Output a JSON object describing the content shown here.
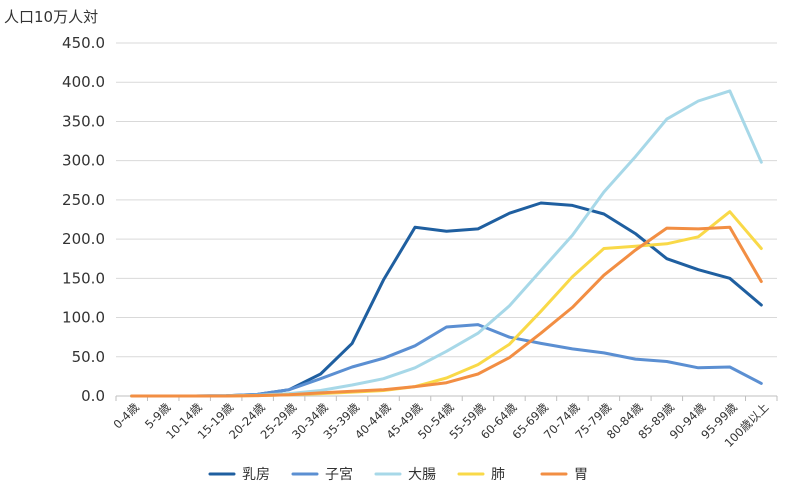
{
  "chart_data": {
    "type": "line",
    "title": "",
    "ylabel": "人口10万人対",
    "xlabel": "",
    "ylim": [
      0,
      450
    ],
    "yticks": [
      "0.0",
      "50.0",
      "100.0",
      "150.0",
      "200.0",
      "250.0",
      "300.0",
      "350.0",
      "400.0",
      "450.0"
    ],
    "grid": "horizontal",
    "legend": "bottom",
    "categories": [
      "0-4歳",
      "5-9歳",
      "10-14歳",
      "15-19歳",
      "20-24歳",
      "25-29歳",
      "30-34歳",
      "35-39歳",
      "40-44歳",
      "45-49歳",
      "50-54歳",
      "55-59歳",
      "60-64歳",
      "65-69歳",
      "70-74歳",
      "75-79歳",
      "80-84歳",
      "85-89歳",
      "90-94歳",
      "95-99歳",
      "100歳以上"
    ],
    "series": [
      {
        "name": "乳房",
        "color": "#1f5fa0",
        "values": [
          0,
          0,
          0,
          0.3,
          2,
          8,
          28,
          67,
          148,
          215,
          210,
          213,
          233,
          246,
          243,
          232,
          207,
          175,
          161,
          150,
          116
        ]
      },
      {
        "name": "子宮",
        "color": "#5b8fd2",
        "values": [
          0,
          0,
          0,
          0.3,
          2,
          8,
          22,
          37,
          48,
          64,
          88,
          91,
          75,
          67,
          60,
          55,
          47,
          44,
          36,
          37,
          16
        ]
      },
      {
        "name": "大腸",
        "color": "#a7d8e8",
        "values": [
          0,
          0,
          0,
          0.3,
          1,
          3,
          7,
          14,
          22,
          36,
          57,
          80,
          115,
          160,
          205,
          260,
          305,
          353,
          376,
          389,
          298
        ]
      },
      {
        "name": "肺",
        "color": "#f9d948",
        "values": [
          0,
          0,
          0,
          0,
          0.5,
          1.5,
          3,
          5,
          7,
          12,
          23,
          40,
          66,
          108,
          152,
          188,
          191,
          194,
          203,
          235,
          188
        ]
      },
      {
        "name": "胃",
        "color": "#f28e43",
        "values": [
          0,
          0,
          0,
          0,
          0.5,
          1.5,
          4,
          6,
          8,
          12,
          17,
          28,
          49,
          80,
          113,
          154,
          186,
          214,
          213,
          215,
          146
        ]
      }
    ]
  }
}
